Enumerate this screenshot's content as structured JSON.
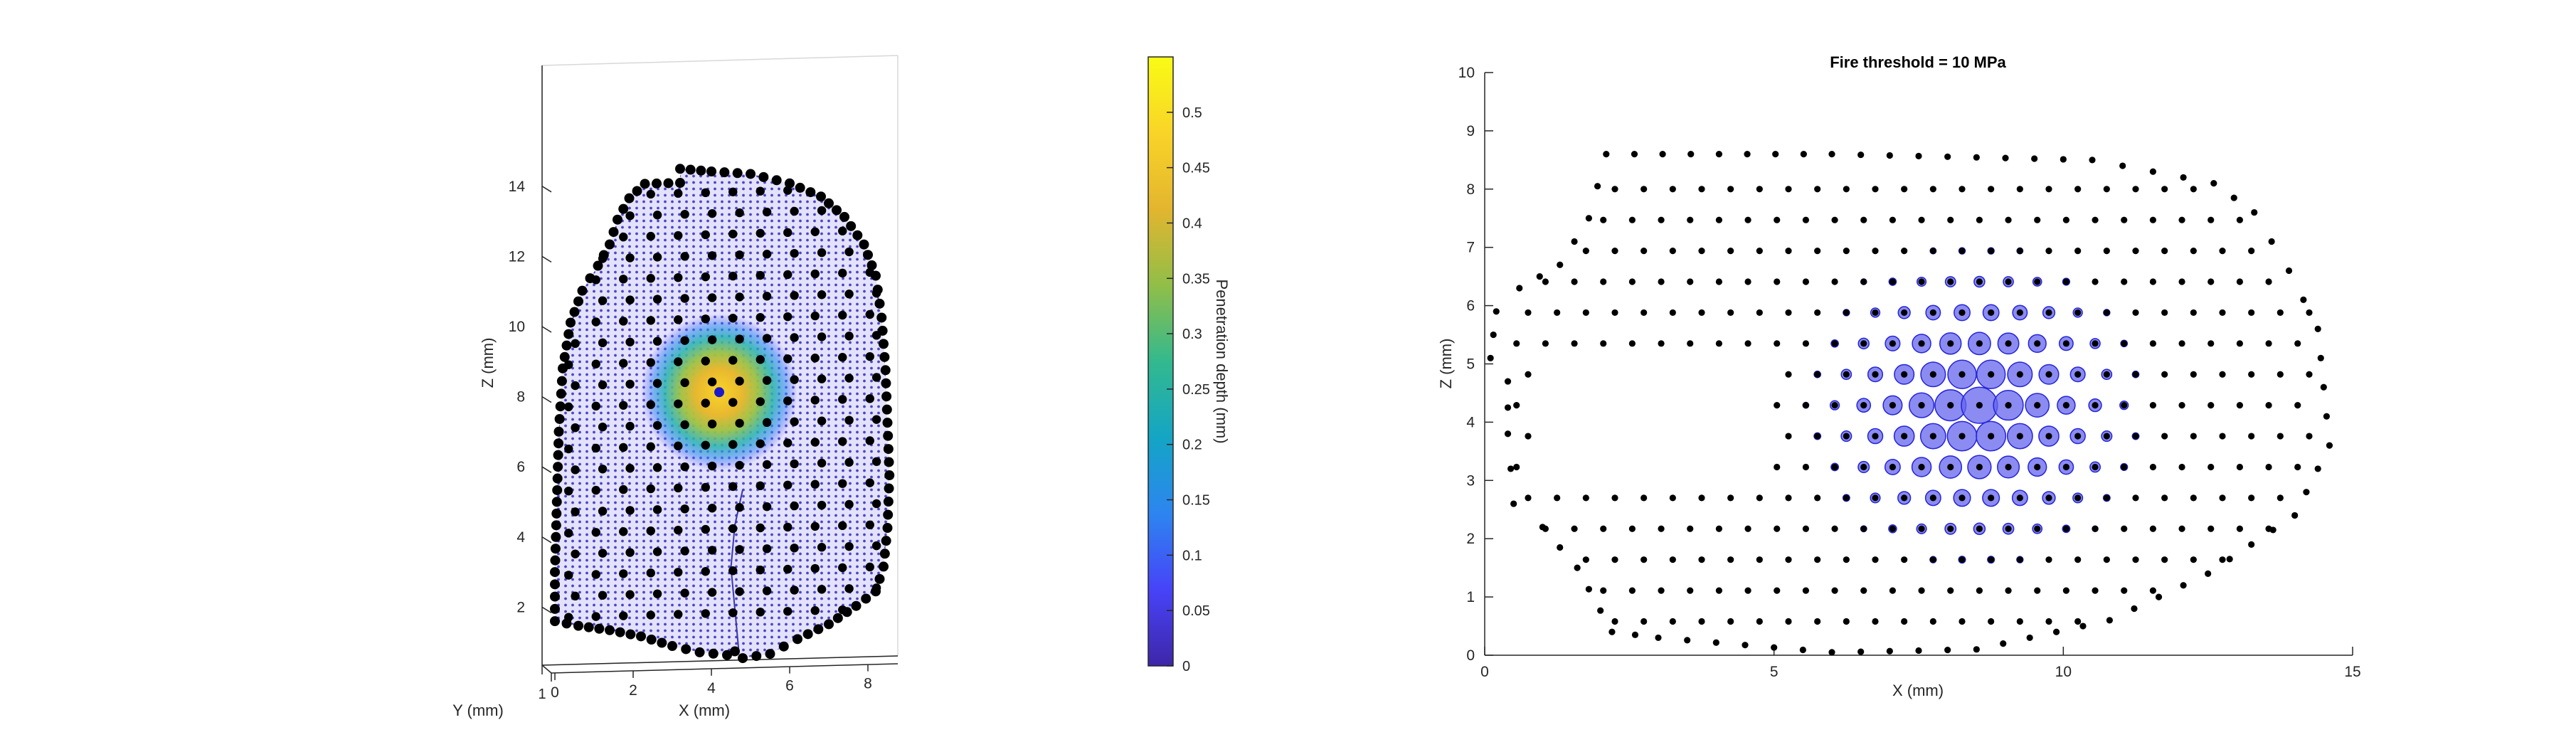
{
  "figure": {
    "left_panel": {
      "chart_data": {
        "type": "scatter",
        "subtype": "3d-surface-scatter",
        "title": "",
        "xlabel": "X (mm)",
        "ylabel": "Y (mm)",
        "zlabel": "Z (mm)",
        "x_ticks": [
          "0",
          "2",
          "4",
          "6",
          "8"
        ],
        "y_ticks": [
          "1"
        ],
        "z_ticks": [
          "2",
          "4",
          "6",
          "8",
          "10",
          "12",
          "14"
        ],
        "xlim": [
          0,
          8.6
        ],
        "zlim": [
          0.3,
          14.6
        ],
        "grid": true,
        "surface_color": "#5a55d6",
        "node_color": "#000000",
        "node_rows_z": [
          1.7,
          2.3,
          2.9,
          3.5,
          4.1,
          4.7,
          5.3,
          5.9,
          6.5,
          7.1,
          7.7,
          8.3,
          8.9,
          9.5,
          10.1,
          10.7,
          11.3,
          11.9,
          12.5,
          13.1,
          13.7
        ],
        "node_cols_x": [
          0.4,
          1.1,
          1.8,
          2.5,
          3.2,
          3.9,
          4.6,
          5.3,
          6.0,
          6.7,
          7.4,
          8.1
        ],
        "hotspot": {
          "x": 4.2,
          "z": 8.0,
          "peak_depth_mm": 0.55,
          "marker_color": "#1a1acc"
        }
      },
      "colorbar": {
        "label": "Penetration depth (mm)",
        "ticks": [
          "0",
          "0.05",
          "0.1",
          "0.15",
          "0.2",
          "0.25",
          "0.3",
          "0.35",
          "0.4",
          "0.45",
          "0.5"
        ],
        "range": [
          0,
          0.55
        ],
        "colormap": [
          "#3e26a8",
          "#4743f8",
          "#2d85f0",
          "#14a5c5",
          "#33b98e",
          "#91be48",
          "#e3b52f",
          "#f9d428",
          "#f9fb15"
        ]
      }
    },
    "right_panel": {
      "chart_data": {
        "type": "scatter",
        "title": "Fire threshold = 10 MPa",
        "xlabel": "X (mm)",
        "ylabel": "Z (mm)",
        "x_ticks": [
          "0",
          "5",
          "10",
          "15"
        ],
        "y_ticks": [
          "0",
          "1",
          "2",
          "3",
          "4",
          "5",
          "6",
          "7",
          "8",
          "9",
          "10"
        ],
        "xlim": [
          0,
          15
        ],
        "ylim": [
          0,
          10
        ],
        "grid": false,
        "series": [
          {
            "role": "nodes",
            "marker_color": "#000000"
          },
          {
            "role": "fired",
            "marker_color": "#2424d8",
            "fill_color": "#6464ee"
          }
        ],
        "fire_center": {
          "x": 8.5,
          "y": 4.25
        },
        "fire_radius_mm": 3.0
      }
    }
  }
}
